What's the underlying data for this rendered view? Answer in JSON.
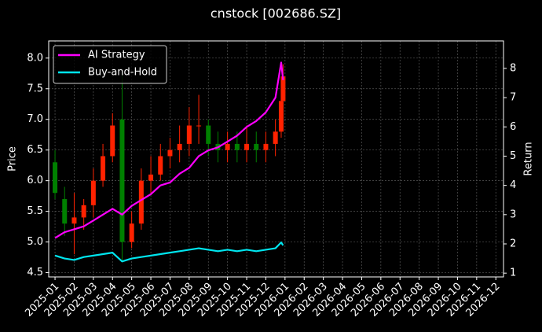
{
  "chart_data": {
    "type": "candlestick",
    "title": "cnstock [002686.SZ]",
    "y_label": "Price",
    "y2_label": "Return",
    "x": [
      0,
      0.5,
      1,
      1.5,
      2,
      2.5,
      3,
      3.5,
      4,
      4.5,
      5,
      5.5,
      6,
      6.5,
      7,
      7.5,
      8,
      8.5,
      9,
      9.5,
      10,
      10.5,
      11,
      11.5,
      11.8,
      11.9
    ],
    "open": [
      6.3,
      5.7,
      5.3,
      5.4,
      5.6,
      6.0,
      6.4,
      7.0,
      5.0,
      5.3,
      6.0,
      6.1,
      6.4,
      6.5,
      6.6,
      6.9,
      6.9,
      6.6,
      6.5,
      6.6,
      6.5,
      6.6,
      6.5,
      6.6,
      6.8,
      7.3
    ],
    "high": [
      6.5,
      5.9,
      5.8,
      5.7,
      6.2,
      6.6,
      7.1,
      7.8,
      5.5,
      6.2,
      6.4,
      6.6,
      6.7,
      6.9,
      7.2,
      7.4,
      7.0,
      6.8,
      6.8,
      6.8,
      6.9,
      6.8,
      6.8,
      7.0,
      7.5,
      7.9
    ],
    "low": [
      5.7,
      5.1,
      4.8,
      5.2,
      5.4,
      5.9,
      6.3,
      4.7,
      4.9,
      5.2,
      5.8,
      6.0,
      6.2,
      6.3,
      6.4,
      6.6,
      6.4,
      6.3,
      6.3,
      6.3,
      6.3,
      6.3,
      6.3,
      6.4,
      6.7,
      7.2
    ],
    "close": [
      5.8,
      5.3,
      5.4,
      5.6,
      6.0,
      6.4,
      6.9,
      5.0,
      5.3,
      6.0,
      6.1,
      6.4,
      6.5,
      6.6,
      6.9,
      6.9,
      6.6,
      6.5,
      6.6,
      6.5,
      6.6,
      6.5,
      6.6,
      6.8,
      7.3,
      7.7
    ],
    "up_color": "#ff2200",
    "down_color": "#008000",
    "series": [
      {
        "name": "AI Strategy",
        "color": "#ff00ff",
        "axis": "y2",
        "values": [
          2.2,
          2.4,
          2.5,
          2.6,
          2.8,
          3.0,
          3.2,
          3.0,
          3.3,
          3.5,
          3.7,
          4.0,
          4.1,
          4.4,
          4.6,
          5.0,
          5.2,
          5.3,
          5.5,
          5.7,
          6.0,
          6.2,
          6.5,
          7.0,
          8.2,
          7.6
        ]
      },
      {
        "name": "Buy-and-Hold",
        "color": "#00e5ee",
        "axis": "y2",
        "values": [
          1.6,
          1.5,
          1.45,
          1.55,
          1.6,
          1.65,
          1.7,
          1.4,
          1.5,
          1.55,
          1.6,
          1.65,
          1.7,
          1.75,
          1.8,
          1.85,
          1.8,
          1.75,
          1.8,
          1.75,
          1.8,
          1.75,
          1.8,
          1.85,
          2.05,
          1.95
        ]
      }
    ],
    "xlim": [
      -0.33,
      23.4
    ],
    "xticks": [
      {
        "value": 0,
        "label": "2025-01"
      },
      {
        "value": 1,
        "label": "2025-02"
      },
      {
        "value": 2,
        "label": "2025-03"
      },
      {
        "value": 3,
        "label": "2025-04"
      },
      {
        "value": 4,
        "label": "2025-05"
      },
      {
        "value": 5,
        "label": "2025-06"
      },
      {
        "value": 6,
        "label": "2025-07"
      },
      {
        "value": 7,
        "label": "2025-08"
      },
      {
        "value": 8,
        "label": "2025-09"
      },
      {
        "value": 9,
        "label": "2025-10"
      },
      {
        "value": 10,
        "label": "2025-11"
      },
      {
        "value": 11,
        "label": "2025-12"
      },
      {
        "value": 12,
        "label": "2026-01"
      },
      {
        "value": 13,
        "label": "2026-02"
      },
      {
        "value": 14,
        "label": "2026-03"
      },
      {
        "value": 15,
        "label": "2026-04"
      },
      {
        "value": 16,
        "label": "2026-05"
      },
      {
        "value": 17,
        "label": "2026-06"
      },
      {
        "value": 18,
        "label": "2026-07"
      },
      {
        "value": 19,
        "label": "2026-08"
      },
      {
        "value": 20,
        "label": "2026-09"
      },
      {
        "value": 21,
        "label": "2026-10"
      },
      {
        "value": 22,
        "label": "2026-11"
      },
      {
        "value": 23,
        "label": "2026-12"
      }
    ],
    "ylim": [
      4.43,
      8.28
    ],
    "yticks": [
      {
        "value": 4.5,
        "label": "4.5"
      },
      {
        "value": 5,
        "label": "5.0"
      },
      {
        "value": 5.5,
        "label": "5.5"
      },
      {
        "value": 6,
        "label": "6.0"
      },
      {
        "value": 6.5,
        "label": "6.5"
      },
      {
        "value": 7,
        "label": "7.0"
      },
      {
        "value": 7.5,
        "label": "7.5"
      },
      {
        "value": 8,
        "label": "8.0"
      }
    ],
    "y2lim": [
      0.87,
      8.94
    ],
    "y2ticks": [
      1,
      2,
      3,
      4,
      5,
      6,
      7,
      8
    ],
    "grid": true,
    "legend": "upper-left"
  }
}
